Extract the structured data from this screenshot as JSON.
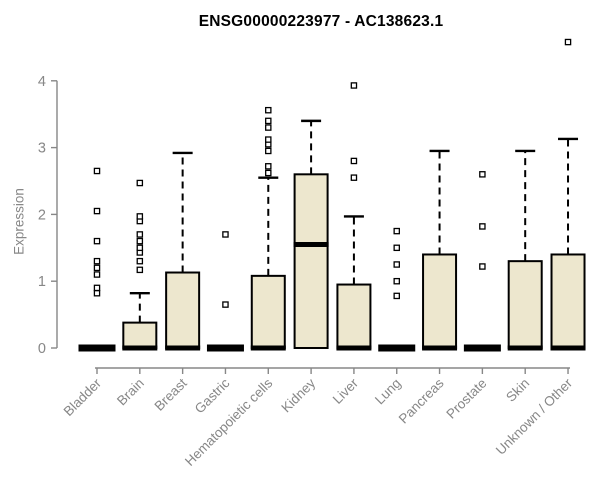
{
  "chart_data": {
    "type": "boxplot",
    "title": "ENSG00000223977 - AC138623.1",
    "ylabel": "Expression",
    "xlabel": "",
    "ylim": [
      0,
      4.7
    ],
    "yticks": [
      0,
      1,
      2,
      3,
      4
    ],
    "grid": false,
    "legend": "none",
    "categories": [
      "Bladder",
      "Brain",
      "Breast",
      "Gastric",
      "Hematopoietic cells",
      "Kidney",
      "Liver",
      "Lung",
      "Pancreas",
      "Prostate",
      "Skin",
      "Unknown / Other"
    ],
    "boxes": [
      {
        "category": "Bladder",
        "low": 0,
        "q1": 0,
        "median": 0,
        "q3": 0,
        "high": 0,
        "outliers": [
          0.82,
          0.9,
          1.1,
          1.2,
          1.3,
          1.6,
          2.05,
          2.65
        ]
      },
      {
        "category": "Brain",
        "low": 0,
        "q1": 0,
        "median": 0,
        "q3": 0.38,
        "high": 0.82,
        "outliers": [
          1.17,
          1.3,
          1.43,
          1.5,
          1.6,
          1.7,
          1.9,
          1.97,
          2.47
        ]
      },
      {
        "category": "Breast",
        "low": 0,
        "q1": 0,
        "median": 0,
        "q3": 1.13,
        "high": 2.92,
        "outliers": []
      },
      {
        "category": "Gastric",
        "low": 0,
        "q1": 0,
        "median": 0,
        "q3": 0,
        "high": 0,
        "outliers": [
          0.65,
          1.7
        ]
      },
      {
        "category": "Hematopoietic cells",
        "low": 0,
        "q1": 0,
        "median": 0,
        "q3": 1.08,
        "high": 2.55,
        "outliers": [
          2.62,
          2.72,
          2.95,
          3.05,
          3.12,
          3.3,
          3.4,
          3.56
        ]
      },
      {
        "category": "Kidney",
        "low": 0,
        "q1": 0,
        "median": 1.55,
        "q3": 2.6,
        "high": 3.4,
        "outliers": []
      },
      {
        "category": "Liver",
        "low": 0,
        "q1": 0,
        "median": 0,
        "q3": 0.95,
        "high": 1.97,
        "outliers": [
          2.55,
          2.8,
          3.93
        ]
      },
      {
        "category": "Lung",
        "low": 0,
        "q1": 0,
        "median": 0,
        "q3": 0,
        "high": 0,
        "outliers": [
          0.78,
          1.0,
          1.25,
          1.5,
          1.75
        ]
      },
      {
        "category": "Pancreas",
        "low": 0,
        "q1": 0,
        "median": 0,
        "q3": 1.4,
        "high": 2.95,
        "outliers": []
      },
      {
        "category": "Prostate",
        "low": 0,
        "q1": 0,
        "median": 0,
        "q3": 0,
        "high": 0,
        "outliers": [
          1.22,
          1.82,
          2.6
        ]
      },
      {
        "category": "Skin",
        "low": 0,
        "q1": 0,
        "median": 0,
        "q3": 1.3,
        "high": 2.95,
        "outliers": []
      },
      {
        "category": "Unknown / Other",
        "low": 0,
        "q1": 0,
        "median": 0,
        "q3": 1.4,
        "high": 3.13,
        "outliers": [
          4.58
        ]
      }
    ],
    "colors": {
      "box_fill": "#ede7ce",
      "box_stroke": "#000000",
      "median": "#000000",
      "whisker": "#000000",
      "outlier_stroke": "#000000",
      "outlier_fill": "#ffffff",
      "axis": "#878787",
      "tick_label": "#878787",
      "title": "#000000",
      "background": "#ffffff"
    }
  }
}
